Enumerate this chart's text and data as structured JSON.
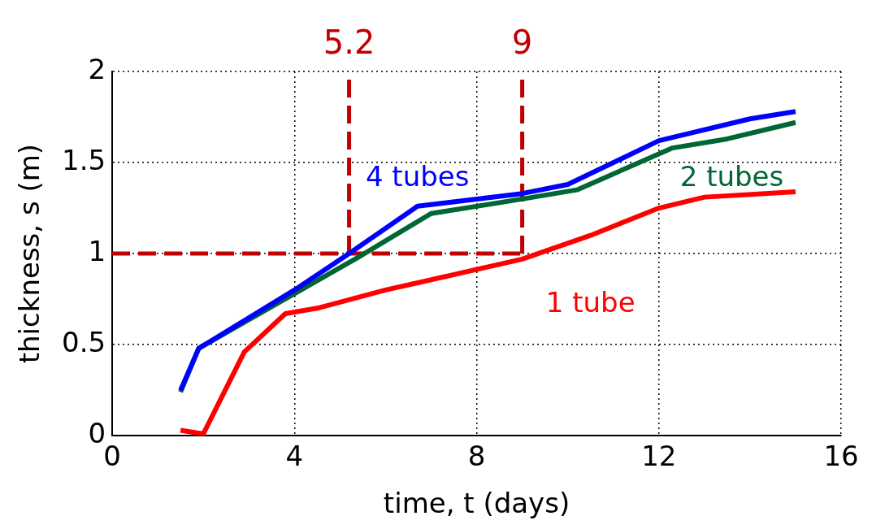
{
  "chart_data": {
    "type": "line",
    "xlabel": "time, t (days)",
    "ylabel": "thickness, s (m)",
    "xlim": [
      0,
      16
    ],
    "xticks": [
      0,
      4,
      8,
      12,
      16
    ],
    "ylim": [
      0,
      2
    ],
    "yticks": [
      0,
      0.5,
      1,
      1.5,
      2
    ],
    "grid": true,
    "legend": false,
    "line_style": "solid",
    "marker": "none",
    "series": [
      {
        "name": "4 tubes",
        "color": "#0000ff",
        "x": [
          1.5,
          1.9,
          4,
          5.2,
          6.7,
          9,
          10,
          12,
          14,
          15
        ],
        "values": [
          0.25,
          0.48,
          0.8,
          1.0,
          1.26,
          1.33,
          1.38,
          1.62,
          1.74,
          1.78
        ]
      },
      {
        "name": "2 tubes",
        "color": "#006633",
        "x": [
          1.5,
          1.9,
          4,
          5.4,
          7,
          9,
          10.2,
          12.3,
          13.5,
          15
        ],
        "values": [
          0.24,
          0.48,
          0.78,
          0.98,
          1.22,
          1.3,
          1.35,
          1.58,
          1.63,
          1.72
        ]
      },
      {
        "name": "1 tube",
        "color": "#ff0000",
        "x": [
          1.5,
          2,
          2.9,
          3.8,
          4.5,
          6,
          9,
          10.5,
          12,
          13,
          15
        ],
        "values": [
          0.03,
          0.01,
          0.46,
          0.67,
          0.7,
          0.8,
          0.97,
          1.1,
          1.25,
          1.31,
          1.34
        ]
      }
    ],
    "ref_lines": [
      {
        "axis": "y",
        "value": 1,
        "label": null,
        "color": "#c00000",
        "line_style": "dashed"
      },
      {
        "axis": "x",
        "value": 5.2,
        "label": "5.2",
        "color": "#c00000",
        "line_style": "dashed"
      },
      {
        "axis": "x",
        "value": 9,
        "label": "9",
        "color": "#c00000",
        "line_style": "dashed"
      }
    ]
  }
}
